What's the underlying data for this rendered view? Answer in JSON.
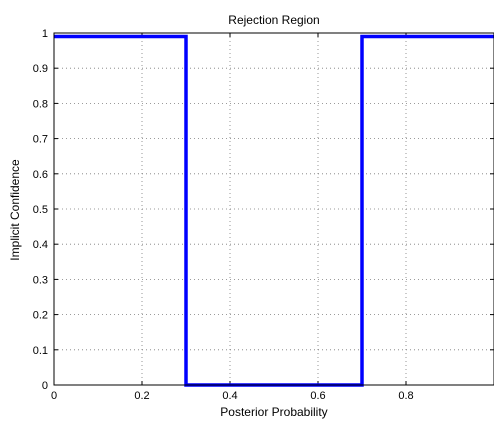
{
  "chart_data": {
    "type": "line",
    "title": "Rejection Region",
    "xlabel": "Posterior Probability",
    "ylabel": "Implicit Confidence",
    "xlim": [
      0,
      1
    ],
    "ylim": [
      0,
      1
    ],
    "xticks": [
      0,
      0.2,
      0.4,
      0.6,
      0.8
    ],
    "xtick_labels": [
      "0",
      "0.2",
      "0.4",
      "0.6",
      "0.8"
    ],
    "yticks": [
      0,
      0.1,
      0.2,
      0.3,
      0.4,
      0.5,
      0.6,
      0.7,
      0.8,
      0.9,
      1
    ],
    "ytick_labels": [
      "0",
      "0.1",
      "0.2",
      "0.3",
      "0.4",
      "0.5",
      "0.6",
      "0.7",
      "0.8",
      "0.9",
      "1"
    ],
    "grid": true,
    "series": [
      {
        "color": "#0000ff",
        "x": [
          0,
          0.3,
          0.3,
          0.7,
          0.7,
          1
        ],
        "y": [
          0.99,
          0.99,
          0,
          0,
          0.99,
          0.99
        ]
      }
    ]
  }
}
